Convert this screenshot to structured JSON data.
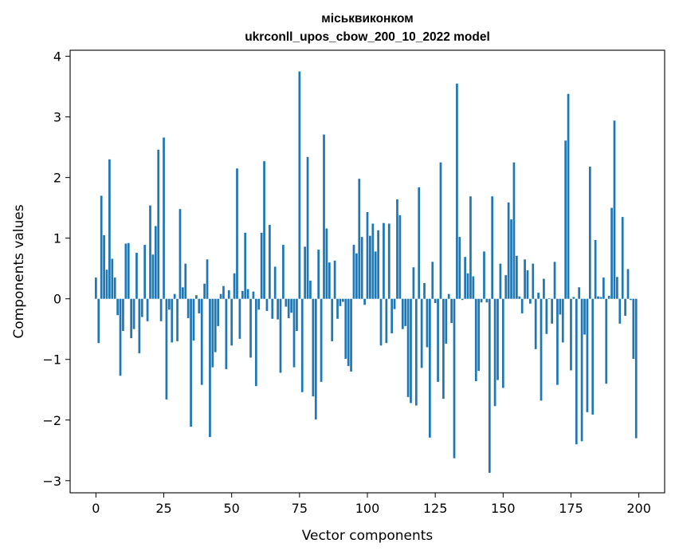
{
  "chart_data": {
    "type": "bar",
    "title_line1": "міськвиконком",
    "title_line2": "ukrconll_upos_cbow_200_10_2022 model",
    "xlabel": "Vector components",
    "ylabel": "Components values",
    "xlim": [
      -9.5,
      209.5
    ],
    "ylim": [
      -3.2,
      4.1
    ],
    "xticks": [
      0,
      25,
      50,
      75,
      100,
      125,
      150,
      175,
      200
    ],
    "xtick_labels": [
      "0",
      "25",
      "50",
      "75",
      "100",
      "125",
      "150",
      "175",
      "200"
    ],
    "yticks": [
      -3,
      -2,
      -1,
      0,
      1,
      2,
      3,
      4
    ],
    "ytick_labels": [
      "−3",
      "−2",
      "−1",
      "0",
      "1",
      "2",
      "3",
      "4"
    ],
    "bar_color": "#1f77b4",
    "grid": false,
    "legend": "none",
    "values": [
      0.35,
      -0.73,
      1.7,
      1.05,
      0.48,
      2.3,
      0.66,
      0.35,
      -0.27,
      -1.27,
      -0.53,
      0.91,
      0.92,
      -0.65,
      -0.5,
      0.76,
      -0.9,
      -0.3,
      0.89,
      -0.37,
      1.54,
      0.73,
      1.2,
      2.46,
      -0.37,
      2.66,
      -1.66,
      -0.18,
      -0.72,
      0.08,
      -0.7,
      1.48,
      0.19,
      0.58,
      -0.32,
      -2.11,
      -0.69,
      0.06,
      -0.24,
      -1.42,
      0.25,
      0.65,
      -2.28,
      -1.13,
      -0.88,
      -0.45,
      0.08,
      0.21,
      -1.16,
      0.14,
      -0.77,
      0.42,
      2.15,
      -0.66,
      0.13,
      1.09,
      0.16,
      -0.97,
      0.12,
      -1.44,
      -0.18,
      1.09,
      2.27,
      -0.2,
      1.22,
      -0.33,
      0.53,
      -0.34,
      -1.22,
      0.89,
      -0.13,
      -0.32,
      -0.23,
      -1.13,
      -0.53,
      3.75,
      -1.54,
      0.86,
      2.34,
      0.3,
      -1.61,
      -1.99,
      0.81,
      -1.37,
      2.71,
      1.16,
      0.6,
      -0.7,
      0.63,
      -0.33,
      -0.12,
      -0.05,
      -0.99,
      -1.11,
      -1.2,
      0.89,
      0.75,
      1.98,
      1.02,
      -0.1,
      1.43,
      1.04,
      1.24,
      0.78,
      1.13,
      -0.77,
      1.25,
      -0.73,
      1.24,
      -0.57,
      -0.17,
      1.64,
      1.38,
      -0.5,
      -0.45,
      -1.62,
      -1.72,
      0.52,
      -1.76,
      1.84,
      -1.14,
      0.26,
      -0.8,
      -2.29,
      0.61,
      -0.07,
      -1.37,
      2.25,
      -1.65,
      -0.74,
      0.08,
      -0.4,
      -2.63,
      3.55,
      1.02,
      -0.02,
      0.69,
      0.42,
      1.69,
      0.37,
      -1.36,
      -1.19,
      -0.06,
      0.78,
      -0.06,
      -2.87,
      1.69,
      -1.77,
      -1.34,
      0.58,
      -1.47,
      0.39,
      1.59,
      1.31,
      2.25,
      0.71,
      0.04,
      -0.24,
      0.65,
      0.47,
      -0.08,
      0.58,
      -0.83,
      0.1,
      -1.68,
      0.33,
      -0.58,
      0.01,
      -0.41,
      0.61,
      -1.42,
      -0.26,
      -0.72,
      2.61,
      3.38,
      -1.18,
      0.03,
      -2.4,
      0.19,
      -2.35,
      -0.59,
      -1.87,
      2.18,
      -1.91,
      0.97,
      0.04,
      0.03,
      0.35,
      -1.4,
      0.05,
      1.5,
      2.94,
      0.36,
      -0.41,
      1.35,
      -0.28,
      0.49,
      -0.02,
      -0.99,
      -2.3
    ]
  }
}
